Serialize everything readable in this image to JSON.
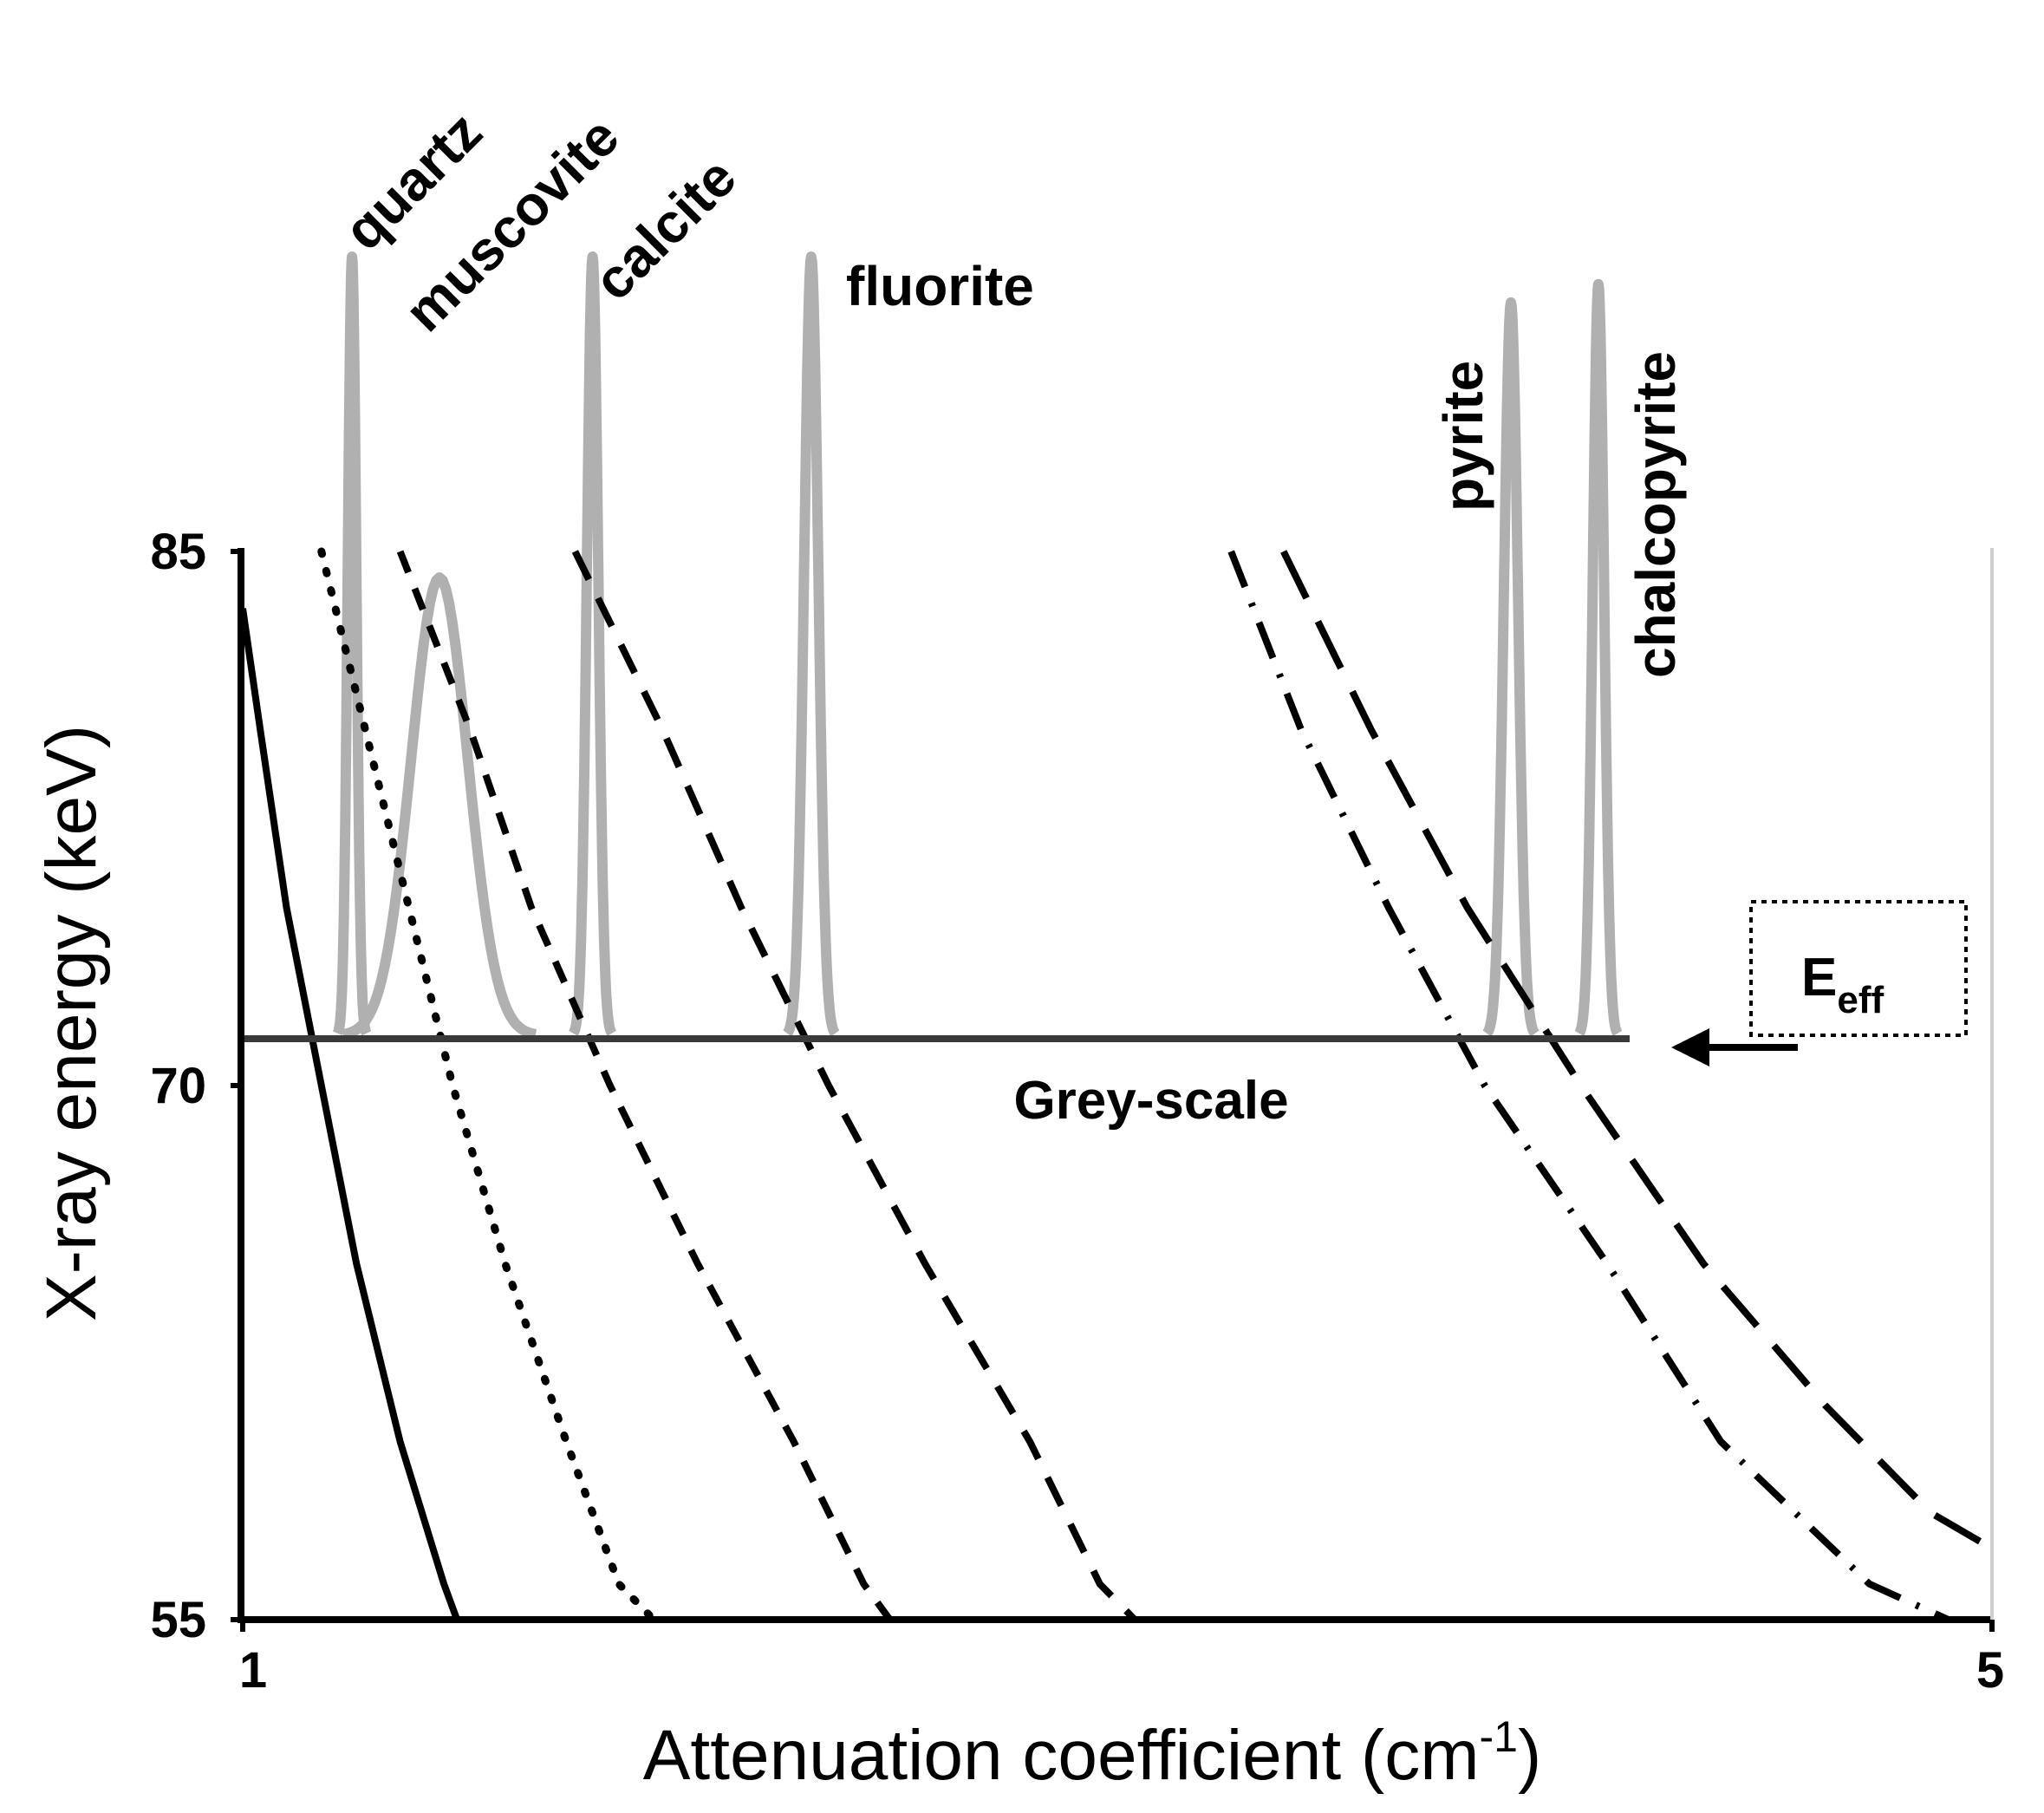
{
  "chart_data": {
    "type": "line",
    "title": "",
    "xlabel": "Attenuation coefficient (cm",
    "xlabel_sup": "-1",
    "xlabel_end": ")",
    "ylabel": "X-ray energy (keV)",
    "xlim": [
      1,
      5
    ],
    "ylim": [
      55,
      85
    ],
    "x_ticks": [
      "1",
      "5"
    ],
    "y_ticks": [
      "85",
      "70",
      "55"
    ],
    "grid": false,
    "legend": "none",
    "series": [
      {
        "label": "quartz",
        "style": "solid",
        "points": [
          [
            1.0,
            83.4
          ],
          [
            1.04,
            80.0
          ],
          [
            1.1,
            75.0
          ],
          [
            1.18,
            70.0
          ],
          [
            1.26,
            65.0
          ],
          [
            1.36,
            60.0
          ],
          [
            1.46,
            56.0
          ],
          [
            1.49,
            55.0
          ]
        ]
      },
      {
        "label": "muscovite",
        "style": "dotted",
        "points": [
          [
            1.18,
            85.0
          ],
          [
            1.28,
            80.0
          ],
          [
            1.38,
            75.0
          ],
          [
            1.48,
            70.0
          ],
          [
            1.6,
            65.0
          ],
          [
            1.74,
            60.0
          ],
          [
            1.86,
            56.0
          ],
          [
            1.94,
            55.0
          ]
        ]
      },
      {
        "label": "calcite",
        "style": "dashed",
        "points": [
          [
            1.36,
            85.0
          ],
          [
            1.52,
            80.0
          ],
          [
            1.66,
            75.0
          ],
          [
            1.84,
            70.0
          ],
          [
            2.04,
            65.0
          ],
          [
            2.26,
            60.0
          ],
          [
            2.42,
            56.0
          ],
          [
            2.48,
            55.0
          ]
        ]
      },
      {
        "label": "fluorite",
        "style": "long-dashed",
        "points": [
          [
            1.76,
            85.0
          ],
          [
            1.96,
            80.0
          ],
          [
            2.14,
            75.0
          ],
          [
            2.34,
            70.0
          ],
          [
            2.56,
            65.0
          ],
          [
            2.8,
            60.0
          ],
          [
            2.96,
            56.0
          ],
          [
            3.04,
            55.0
          ]
        ]
      },
      {
        "label": "pyrite",
        "style": "dash-dot",
        "points": [
          [
            3.26,
            85.0
          ],
          [
            3.42,
            80.0
          ],
          [
            3.62,
            75.0
          ],
          [
            3.84,
            70.0
          ],
          [
            4.12,
            65.0
          ],
          [
            4.38,
            60.0
          ],
          [
            4.72,
            56.0
          ],
          [
            4.9,
            55.0
          ]
        ]
      },
      {
        "label": "chalcopyrite",
        "style": "long-dash",
        "points": [
          [
            3.38,
            85.0
          ],
          [
            3.58,
            80.0
          ],
          [
            3.8,
            75.0
          ],
          [
            4.06,
            70.0
          ],
          [
            4.34,
            65.0
          ],
          [
            4.62,
            61.0
          ],
          [
            4.86,
            58.0
          ],
          [
            5.0,
            57.0
          ]
        ]
      }
    ],
    "grey_scale_histogram": {
      "color": "#b0b0b0",
      "peaks": [
        {
          "label": "quartz",
          "center": 1.25,
          "width": 0.03,
          "height": 85
        },
        {
          "label": "muscovite",
          "center": 1.45,
          "width": 0.2,
          "height": 50
        },
        {
          "label": "calcite",
          "center": 1.8,
          "width": 0.04,
          "height": 85
        },
        {
          "label": "fluorite",
          "center": 2.3,
          "width": 0.05,
          "height": 85
        },
        {
          "label": "pyrite",
          "center": 3.9,
          "width": 0.05,
          "height": 80
        },
        {
          "label": "chalcopyrite",
          "center": 4.1,
          "width": 0.04,
          "height": 82
        }
      ]
    },
    "annotations": {
      "grey_scale_label": "Grey-scale",
      "eeff_main": "E",
      "eeff_sub": "eff",
      "grey_scale_energy": 71.4
    },
    "mineral_labels": [
      "quartz",
      "muscovite",
      "calcite",
      "fluorite",
      "pyrite",
      "chalcopyrite"
    ]
  }
}
